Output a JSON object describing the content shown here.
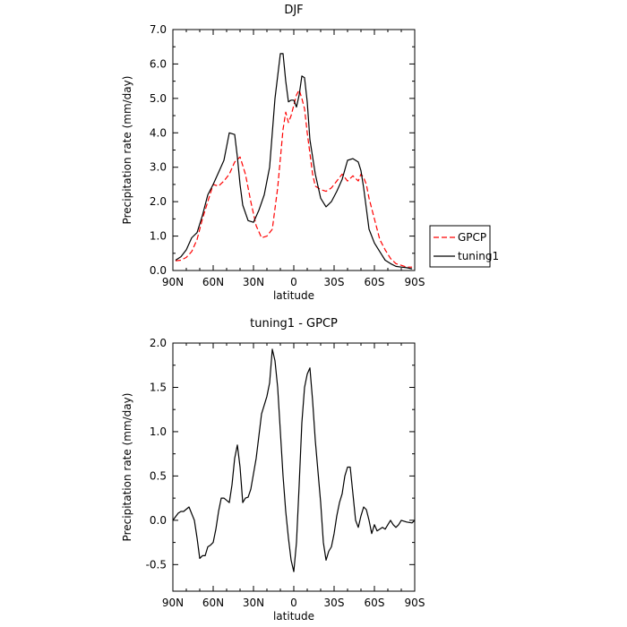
{
  "chart_data": [
    {
      "type": "line",
      "title": "DJF",
      "xlabel": "latitude",
      "ylabel": "Precipitation rate (mm/day)",
      "xlim": [
        90,
        -90
      ],
      "ylim": [
        0,
        7
      ],
      "x_ticks": [
        {
          "value": 90,
          "label": "90N"
        },
        {
          "value": 60,
          "label": "60N"
        },
        {
          "value": 30,
          "label": "30N"
        },
        {
          "value": 0,
          "label": "0"
        },
        {
          "value": -30,
          "label": "30S"
        },
        {
          "value": -60,
          "label": "60S"
        },
        {
          "value": -90,
          "label": "90S"
        }
      ],
      "y_ticks": [
        {
          "value": 0,
          "label": "0.0"
        },
        {
          "value": 1,
          "label": "1.0"
        },
        {
          "value": 2,
          "label": "2.0"
        },
        {
          "value": 3,
          "label": "3.0"
        },
        {
          "value": 4,
          "label": "4.0"
        },
        {
          "value": 5,
          "label": "5.0"
        },
        {
          "value": 6,
          "label": "6.0"
        },
        {
          "value": 7,
          "label": "7.0"
        }
      ],
      "legend": {
        "placement": "right"
      },
      "series": [
        {
          "name": "GPCP",
          "color": "#ff0000",
          "dash": "dashed",
          "x": [
            88,
            84,
            80,
            76,
            72,
            68,
            64,
            60,
            56,
            52,
            48,
            44,
            40,
            36,
            32,
            28,
            24,
            20,
            16,
            12,
            8,
            6,
            4,
            2,
            0,
            -2,
            -4,
            -6,
            -8,
            -10,
            -12,
            -14,
            -16,
            -20,
            -24,
            -28,
            -32,
            -36,
            -40,
            -44,
            -48,
            -50,
            -52,
            -54,
            -56,
            -60,
            -64,
            -68,
            -72,
            -76,
            -80,
            -84,
            -88
          ],
          "y": [
            0.28,
            0.3,
            0.38,
            0.55,
            0.9,
            1.5,
            2.0,
            2.5,
            2.45,
            2.6,
            2.8,
            3.15,
            3.3,
            2.8,
            2.0,
            1.3,
            0.95,
            1.0,
            1.2,
            2.4,
            4.1,
            4.6,
            4.3,
            4.5,
            4.8,
            5.1,
            5.25,
            5.0,
            4.7,
            4.0,
            3.4,
            2.8,
            2.45,
            2.35,
            2.3,
            2.4,
            2.6,
            2.8,
            2.6,
            2.75,
            2.6,
            2.8,
            2.7,
            2.5,
            2.1,
            1.5,
            0.9,
            0.6,
            0.35,
            0.2,
            0.15,
            0.1,
            0.1
          ]
        },
        {
          "name": "tuning1",
          "color": "#000000",
          "dash": "solid",
          "x": [
            88,
            84,
            80,
            76,
            72,
            68,
            64,
            60,
            56,
            52,
            48,
            44,
            42,
            40,
            38,
            34,
            30,
            26,
            22,
            18,
            14,
            10,
            8,
            6,
            4,
            2,
            0,
            -2,
            -4,
            -6,
            -8,
            -10,
            -12,
            -16,
            -20,
            -24,
            -28,
            -32,
            -36,
            -40,
            -44,
            -48,
            -50,
            -52,
            -54,
            -56,
            -60,
            -64,
            -68,
            -72,
            -76,
            -80,
            -84,
            -88
          ],
          "y": [
            0.3,
            0.4,
            0.6,
            0.95,
            1.1,
            1.6,
            2.2,
            2.5,
            2.85,
            3.2,
            4.0,
            3.95,
            3.3,
            2.5,
            1.9,
            1.45,
            1.4,
            1.75,
            2.2,
            3.0,
            5.0,
            6.3,
            6.3,
            5.5,
            4.9,
            4.95,
            4.95,
            4.75,
            5.1,
            5.65,
            5.6,
            4.9,
            3.8,
            2.8,
            2.1,
            1.85,
            2.0,
            2.3,
            2.65,
            3.2,
            3.25,
            3.15,
            2.9,
            2.4,
            1.8,
            1.2,
            0.8,
            0.55,
            0.3,
            0.2,
            0.12,
            0.1,
            0.08,
            0.05
          ]
        }
      ]
    },
    {
      "type": "line",
      "title": "tuning1 - GPCP",
      "xlabel": "latitude",
      "ylabel": "Precipitation rate (mm/day)",
      "xlim": [
        90,
        -90
      ],
      "ylim": [
        -0.8,
        2
      ],
      "x_ticks": [
        {
          "value": 90,
          "label": "90N"
        },
        {
          "value": 60,
          "label": "60N"
        },
        {
          "value": 30,
          "label": "30N"
        },
        {
          "value": 0,
          "label": "0"
        },
        {
          "value": -30,
          "label": "30S"
        },
        {
          "value": -60,
          "label": "60S"
        },
        {
          "value": -90,
          "label": "90S"
        }
      ],
      "y_ticks": [
        {
          "value": -0.5,
          "label": "-0.5"
        },
        {
          "value": 0,
          "label": "0.0"
        },
        {
          "value": 0.5,
          "label": "0.5"
        },
        {
          "value": 1,
          "label": "1.0"
        },
        {
          "value": 1.5,
          "label": "1.5"
        },
        {
          "value": 2,
          "label": "2.0"
        }
      ],
      "series": [
        {
          "color": "#000000",
          "dash": "solid",
          "x": [
            90,
            86,
            84,
            82,
            78,
            74,
            72,
            70,
            68,
            66,
            64,
            62,
            60,
            58,
            56,
            54,
            52,
            48,
            46,
            44,
            42,
            40,
            38,
            36,
            34,
            32,
            28,
            26,
            24,
            22,
            20,
            18,
            16,
            14,
            12,
            10,
            8,
            6,
            4,
            2,
            0,
            -2,
            -4,
            -6,
            -8,
            -10,
            -12,
            -14,
            -16,
            -18,
            -20,
            -22,
            -24,
            -26,
            -28,
            -30,
            -32,
            -34,
            -36,
            -38,
            -40,
            -42,
            -44,
            -46,
            -48,
            -50,
            -52,
            -54,
            -56,
            -58,
            -60,
            -62,
            -64,
            -66,
            -68,
            -70,
            -72,
            -74,
            -76,
            -78,
            -80,
            -84,
            -88,
            -90
          ],
          "y": [
            0.0,
            0.08,
            0.1,
            0.1,
            0.15,
            0.0,
            -0.2,
            -0.43,
            -0.4,
            -0.4,
            -0.3,
            -0.28,
            -0.25,
            -0.1,
            0.1,
            0.25,
            0.25,
            0.2,
            0.4,
            0.7,
            0.85,
            0.6,
            0.2,
            0.25,
            0.26,
            0.35,
            0.7,
            0.95,
            1.2,
            1.3,
            1.4,
            1.55,
            1.93,
            1.8,
            1.5,
            1.0,
            0.5,
            0.1,
            -0.2,
            -0.45,
            -0.58,
            -0.25,
            0.4,
            1.1,
            1.5,
            1.65,
            1.72,
            1.35,
            0.9,
            0.55,
            0.2,
            -0.25,
            -0.45,
            -0.35,
            -0.3,
            -0.15,
            0.05,
            0.2,
            0.3,
            0.5,
            0.6,
            0.6,
            0.3,
            0.0,
            -0.08,
            0.05,
            0.15,
            0.12,
            0.0,
            -0.15,
            -0.05,
            -0.12,
            -0.1,
            -0.08,
            -0.1,
            -0.05,
            0.0,
            -0.05,
            -0.08,
            -0.05,
            0.0,
            -0.02,
            -0.03,
            0.0
          ]
        }
      ]
    }
  ]
}
